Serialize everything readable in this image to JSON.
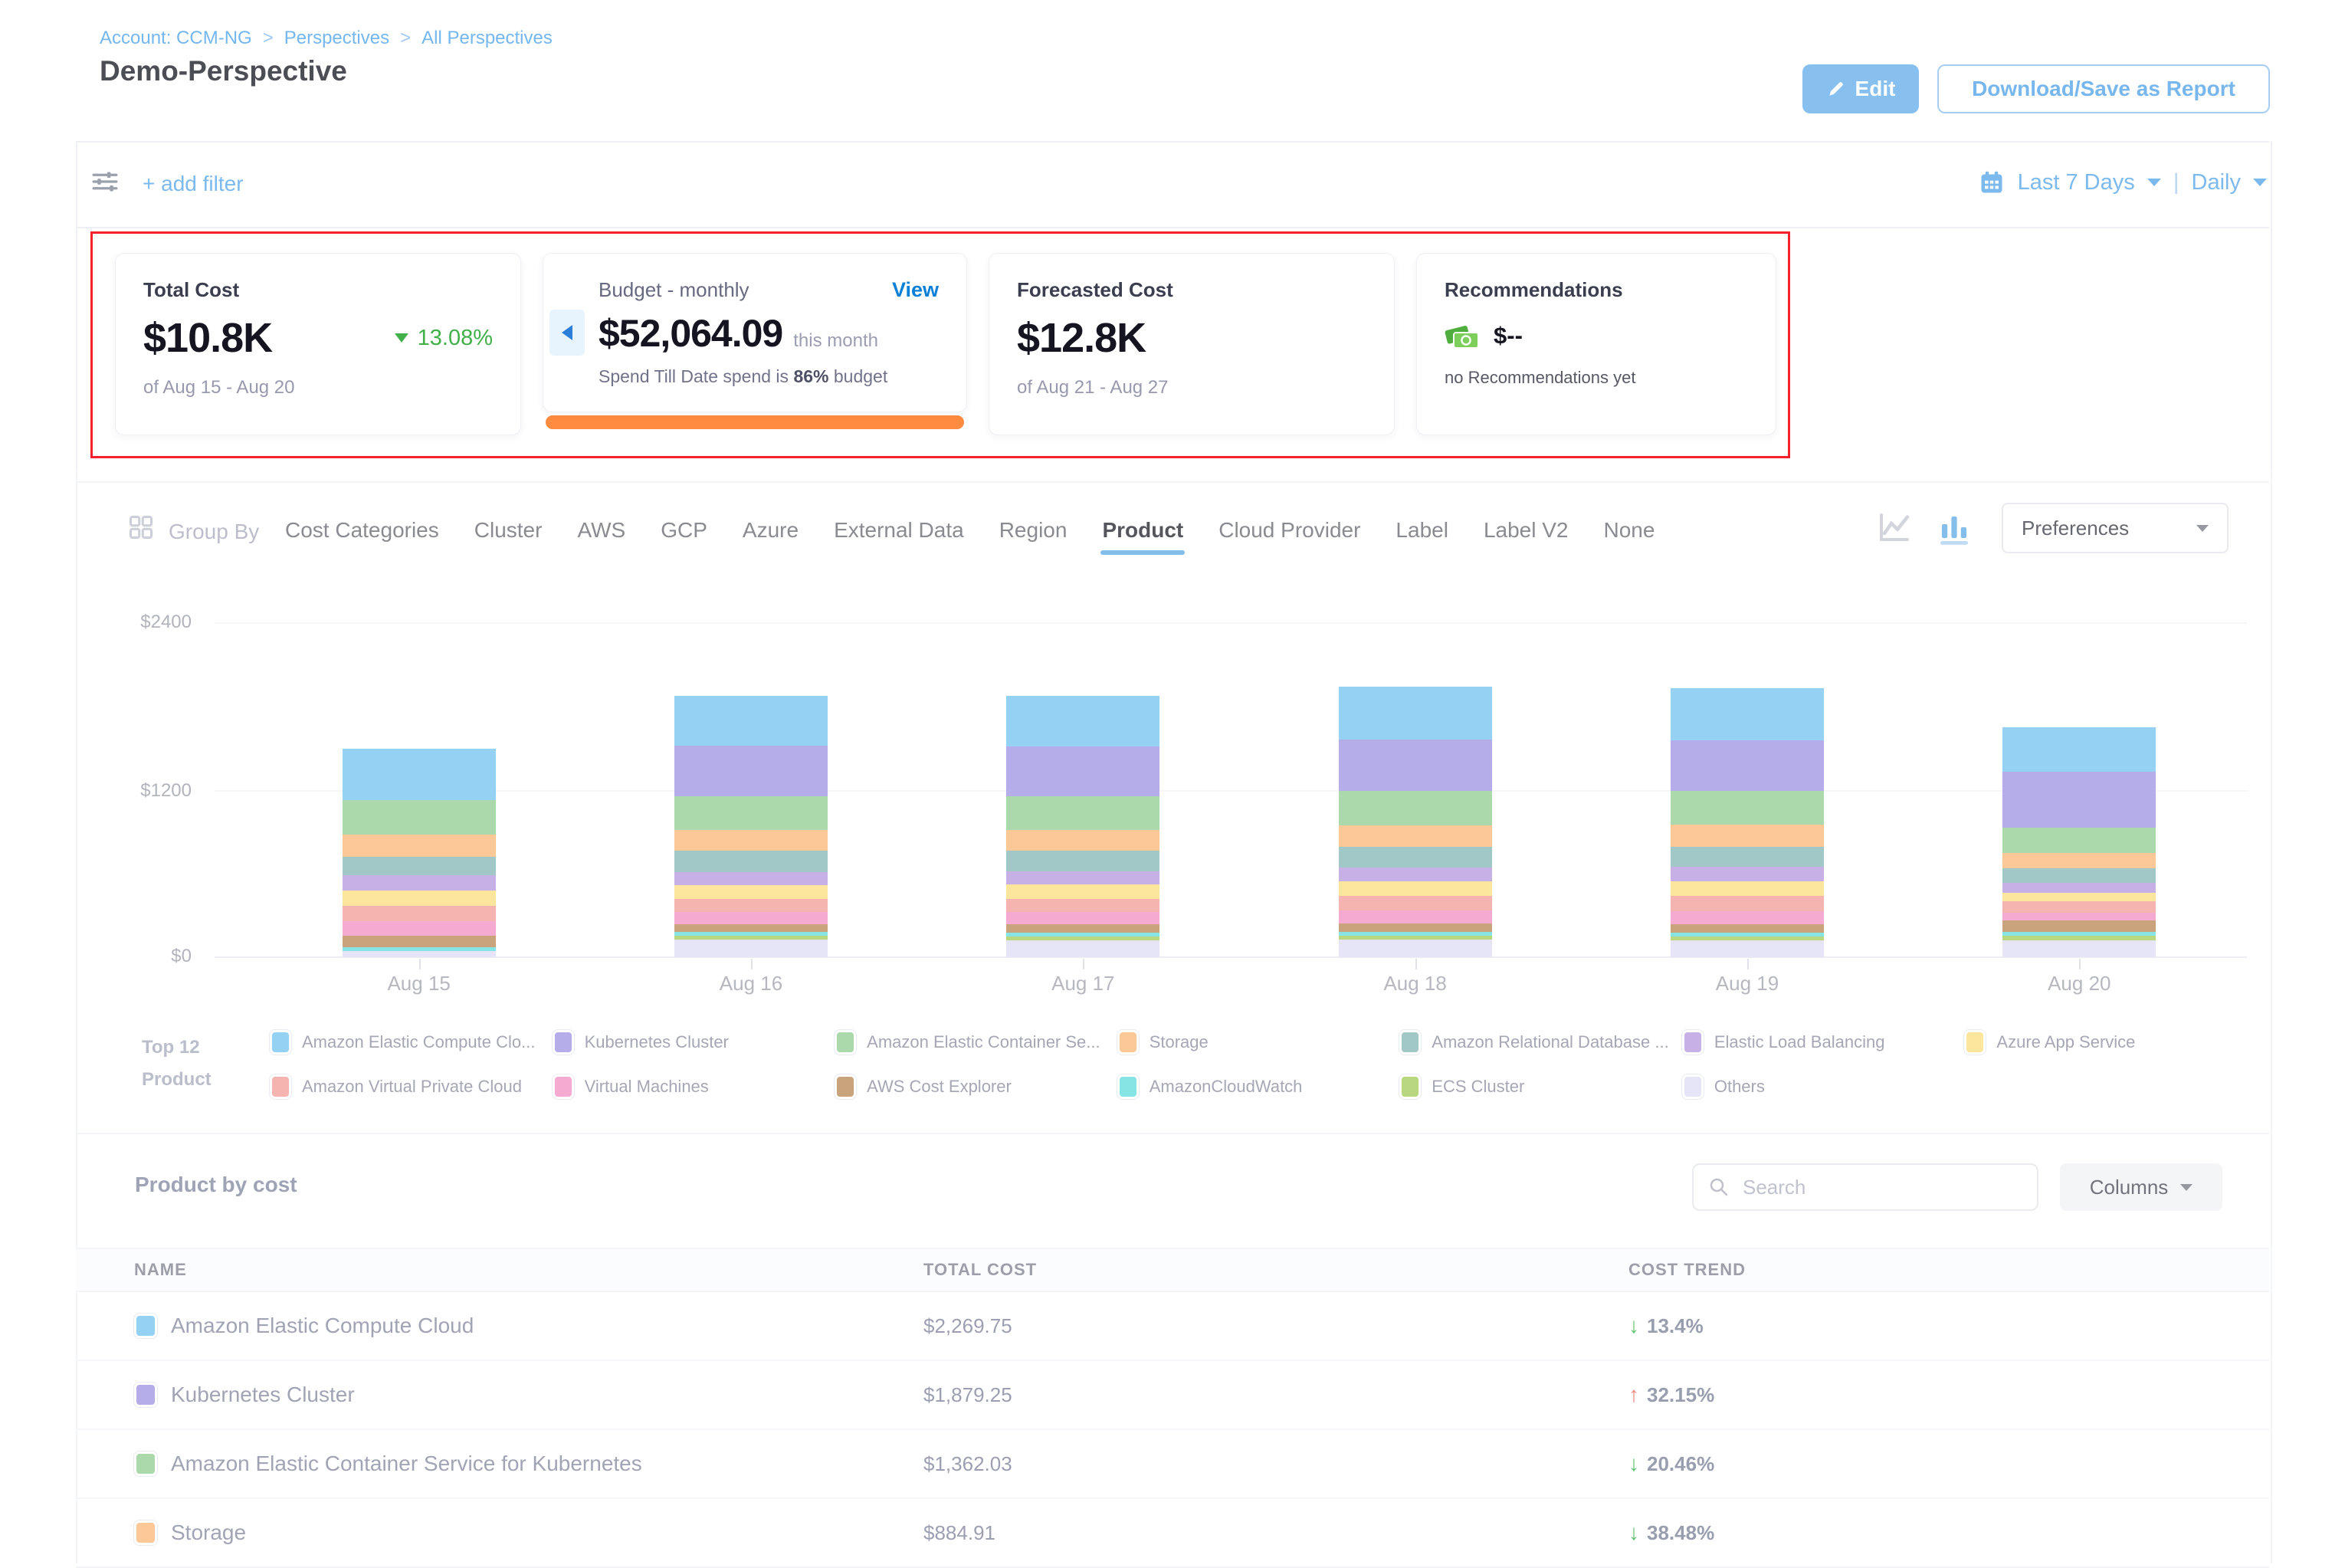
{
  "header": {
    "breadcrumb": {
      "account": "Account: CCM-NG",
      "separator": ">",
      "perspectives": "Perspectives",
      "all_perspectives": "All Perspectives"
    },
    "title": "Demo-Perspective",
    "edit_label": "Edit",
    "download_label": "Download/Save as Report"
  },
  "filter_bar": {
    "add_filter": "+ add filter",
    "date_range": "Last 7 Days",
    "divider": "|",
    "granularity": "Daily"
  },
  "cards": {
    "total_cost": {
      "label": "Total Cost",
      "value": "$10.8K",
      "trend": "13.08%",
      "period": "of Aug 15 - Aug 20"
    },
    "budget": {
      "label": "Budget - monthly",
      "view": "View",
      "value": "$52,064.09",
      "value_suffix": "this month",
      "spend_prefix": "Spend Till Date spend is",
      "spend_pct": "86%",
      "spend_suffix": "budget"
    },
    "forecasted": {
      "label": "Forecasted Cost",
      "value": "$12.8K",
      "period": "of Aug 21 - Aug 27"
    },
    "recommendations": {
      "label": "Recommendations",
      "value": "$--",
      "empty": "no Recommendations yet"
    }
  },
  "group_by": {
    "label": "Group By",
    "tabs": [
      "Cost Categories",
      "Cluster",
      "AWS",
      "GCP",
      "Azure",
      "External Data",
      "Region",
      "Product",
      "Cloud Provider",
      "Label",
      "Label V2",
      "None"
    ],
    "active": "Product",
    "preferences": "Preferences"
  },
  "chart_data": {
    "type": "bar",
    "stacked": true,
    "title": "Perspective cost by Product (daily)",
    "categories": [
      "Aug 15",
      "Aug 16",
      "Aug 17",
      "Aug 18",
      "Aug 19",
      "Aug 20"
    ],
    "y_ticks": [
      "$2400",
      "$1200",
      "$0"
    ],
    "ylim": [
      0,
      2400
    ],
    "grid": true,
    "legend_position": "bottom",
    "series": [
      {
        "label": "Amazon Elastic Compute Clo...",
        "color": "#6dc0ed",
        "values": [
          371,
          359,
          360,
          380,
          375,
          320
        ]
      },
      {
        "label": "Kubernetes Cluster",
        "color": "#998fe3",
        "values": [
          0,
          364,
          360,
          370,
          365,
          400
        ]
      },
      {
        "label": "Amazon Elastic Container Se...",
        "color": "#8ccb8c",
        "values": [
          250,
          243,
          240,
          245,
          240,
          180
        ]
      },
      {
        "label": "Storage",
        "color": "#fbb471",
        "values": [
          158,
          149,
          150,
          155,
          160,
          110
        ]
      },
      {
        "label": "Amazon Relational Database ...",
        "color": "#7fb4b1",
        "values": [
          130,
          149,
          150,
          150,
          145,
          105
        ]
      },
      {
        "label": "Elastic Load Balancing",
        "color": "#b193dd",
        "values": [
          111,
          94,
          95,
          100,
          100,
          75
        ]
      },
      {
        "label": "Azure App Service",
        "color": "#fbdc78",
        "values": [
          111,
          99,
          100,
          105,
          105,
          60
        ]
      },
      {
        "label": "Amazon Virtual Private Cloud",
        "color": "#f19993",
        "values": [
          111,
          94,
          95,
          100,
          110,
          80
        ]
      },
      {
        "label": "Virtual Machines",
        "color": "#f18bc0",
        "values": [
          102,
          88,
          90,
          95,
          95,
          55
        ]
      },
      {
        "label": "AWS Cost Explorer",
        "color": "#b4814b",
        "values": [
          83,
          55,
          58,
          60,
          60,
          85
        ]
      },
      {
        "label": "AmazonCloudWatch",
        "color": "#59dbdb",
        "values": [
          28,
          28,
          28,
          28,
          28,
          25
        ]
      },
      {
        "label": "ECS Cluster",
        "color": "#a0c853",
        "values": [
          0,
          31,
          30,
          30,
          30,
          35
        ]
      },
      {
        "label": "Others",
        "color": "#dddcf5",
        "values": [
          45,
          125,
          120,
          125,
          120,
          120
        ]
      }
    ]
  },
  "legend": {
    "title_line1": "Top 12",
    "title_line2": "Product"
  },
  "table": {
    "title": "Product by cost",
    "search_placeholder": "Search",
    "columns_label": "Columns",
    "headers": [
      "NAME",
      "TOTAL COST",
      "COST TREND"
    ],
    "rows": [
      {
        "name": "Amazon Elastic Compute Cloud",
        "color": "#6dc0ed",
        "total": "$2,269.75",
        "trend": "13.4%",
        "direction": "down"
      },
      {
        "name": "Kubernetes Cluster",
        "color": "#998fe3",
        "total": "$1,879.25",
        "trend": "32.15%",
        "direction": "up"
      },
      {
        "name": "Amazon Elastic Container Service for Kubernetes",
        "color": "#8ccb8c",
        "total": "$1,362.03",
        "trend": "20.46%",
        "direction": "down"
      },
      {
        "name": "Storage",
        "color": "#fbb471",
        "total": "$884.91",
        "trend": "38.48%",
        "direction": "down"
      }
    ]
  },
  "colors": {
    "accent_blue": "#0b80d6",
    "light_blue": "#7cb9ed",
    "red_highlight": "#f5222d",
    "budget_bar_orange": "#ff8b40",
    "trend_down_green": "#27ae3c",
    "trend_up_red": "#e85a4e"
  }
}
